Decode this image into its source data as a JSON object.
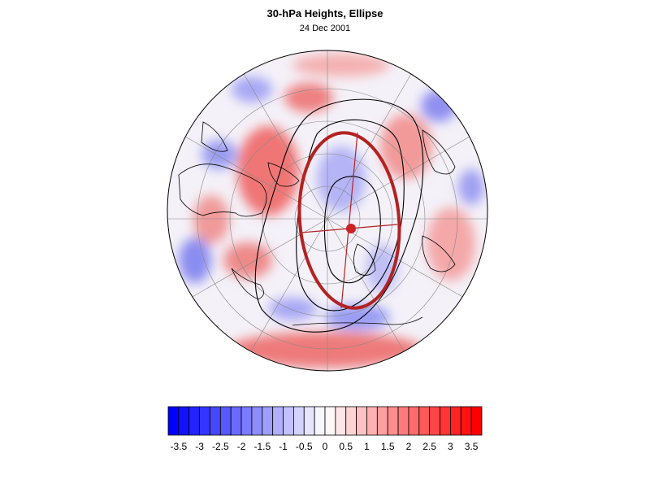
{
  "title": "30-hPa Heights, Ellipse",
  "subtitle": "24 Dec 2001",
  "projection": "orthographic-polar",
  "colors": {
    "ellipse": "#b22222",
    "ellipse_center": "#cc2222",
    "contours": "#000000",
    "coastline": "#000000",
    "gridlines": "#888888",
    "negative_max": "#0000ff",
    "positive_max": "#ff0000",
    "neutral": "#ffffff"
  },
  "colorbar": {
    "min": -3.75,
    "max": 3.75,
    "step": 0.25,
    "tick_labels": [
      "-3.5",
      "-3",
      "-2.5",
      "-2",
      "-1.5",
      "-1",
      "-0.5",
      "0",
      "0.5",
      "1",
      "1.5",
      "2",
      "2.5",
      "3",
      "3.5"
    ]
  }
}
